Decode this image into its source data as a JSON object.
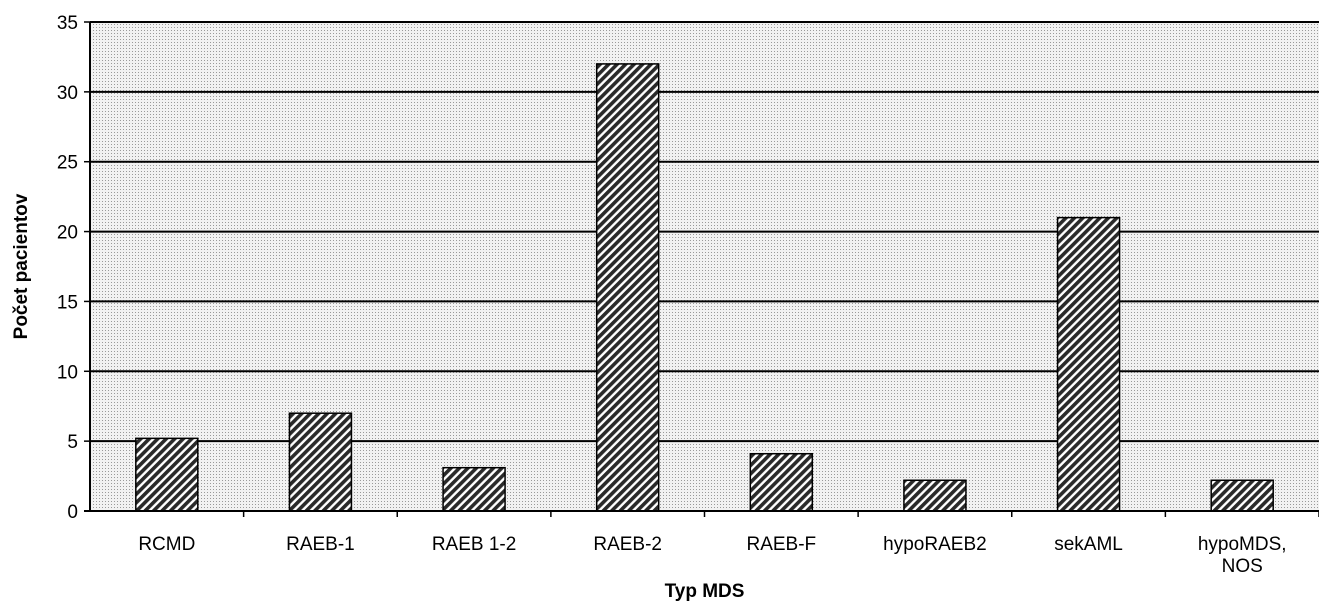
{
  "chart_data": {
    "type": "bar",
    "categories": [
      [
        "RCMD"
      ],
      [
        "RAEB-1"
      ],
      [
        "RAEB 1-2"
      ],
      [
        "RAEB-2"
      ],
      [
        "RAEB-F"
      ],
      [
        "hypoRAEB2"
      ],
      [
        "sekAML"
      ],
      [
        "hypoMDS,",
        "NOS"
      ]
    ],
    "values": [
      5.2,
      7,
      3.1,
      32,
      4.1,
      2.2,
      21,
      2.2
    ],
    "title": "",
    "xlabel": "Typ MDS",
    "ylabel": "Počet pacientov",
    "ylim": [
      0,
      35
    ],
    "yticks": [
      0,
      5,
      10,
      15,
      20,
      25,
      30,
      35
    ],
    "grid": true,
    "legend": "none",
    "colors": {
      "plot_background": "#e9e9e9",
      "bar_fill": "#4a4a4a",
      "bar_stroke": "#000000",
      "grid": "#000000"
    }
  }
}
